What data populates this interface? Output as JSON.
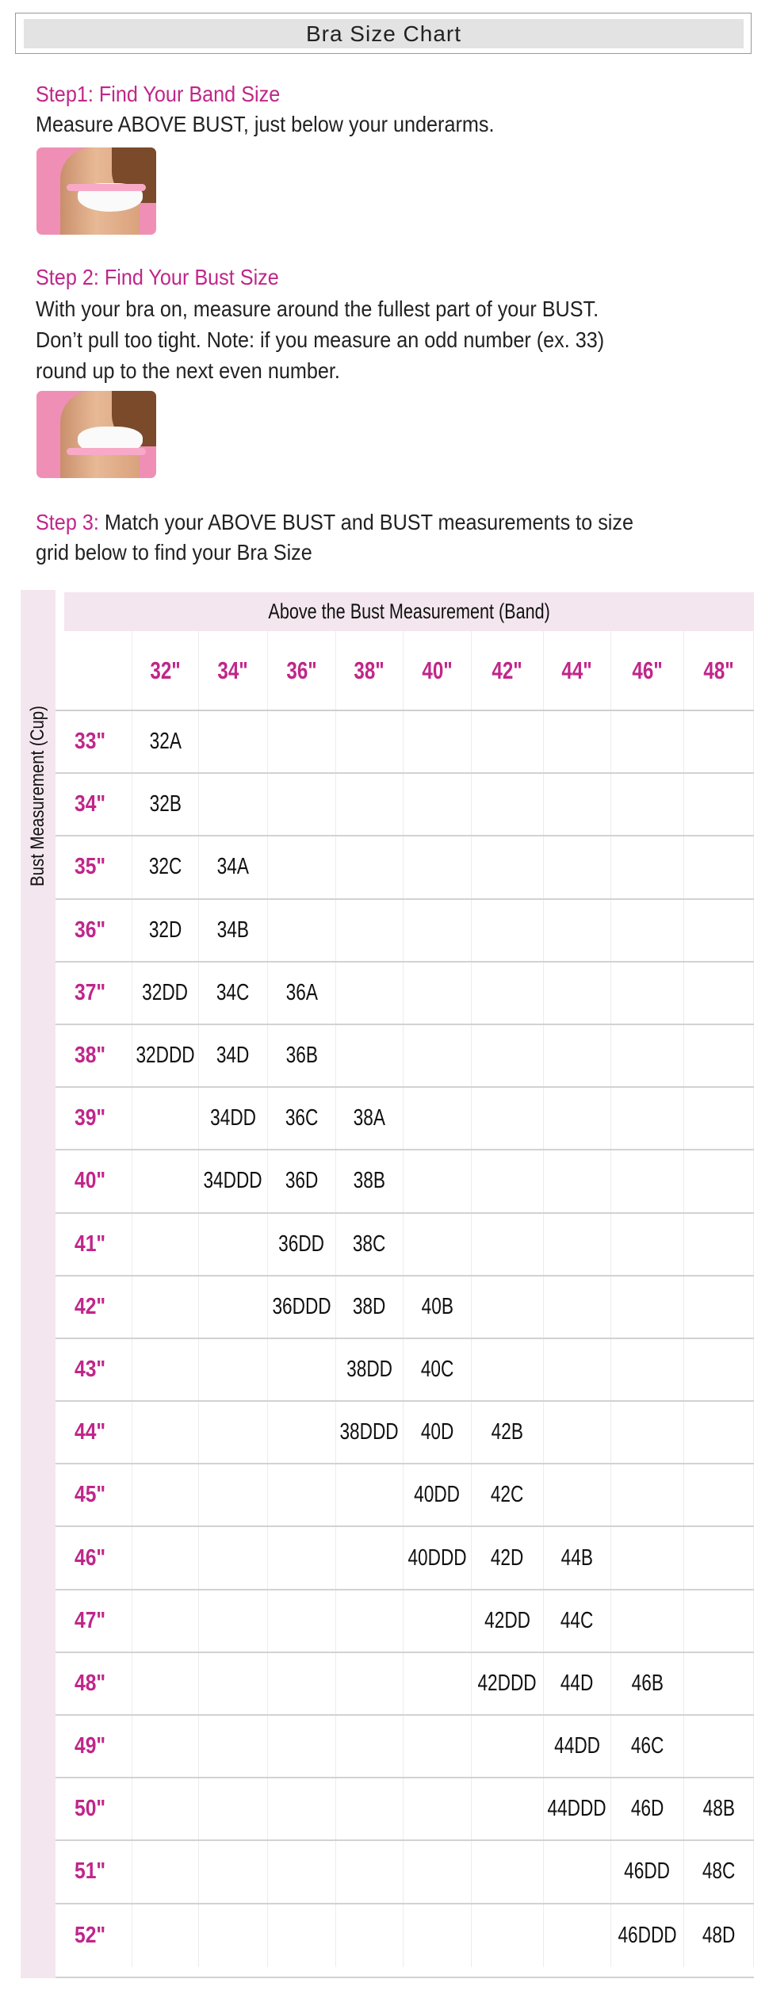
{
  "header": {
    "title": "Bra Size Chart"
  },
  "step1": {
    "title": "Step1: Find Your Band Size",
    "text": "Measure ABOVE BUST, just below your underarms.",
    "image": "band-measurement-photo"
  },
  "step2": {
    "title": "Step 2: Find Your Bust Size",
    "lines": [
      "With your bra on, measure around the fullest part of your BUST.",
      "Don’t pull too tight. Note: if you measure an odd number (ex. 33)",
      "round up to the next even number."
    ],
    "image": "bust-measurement-photo"
  },
  "step3": {
    "title": "Step 3:",
    "text_line1": " Match your ABOVE BUST and BUST measurements to size",
    "text_line2": "grid below to find your Bra Size"
  },
  "colors": {
    "accent": "#c0268a",
    "band_bg": "#f3e6ee",
    "header_bg": "#e3e3e3"
  },
  "table": {
    "column_axis_label": "Above the Bust Measurement (Band)",
    "row_axis_label": "Bust Measurement (Cup)",
    "columns": [
      "32\"",
      "34\"",
      "36\"",
      "38\"",
      "40\"",
      "42\"",
      "44\"",
      "46\"",
      "48\""
    ],
    "rows": [
      {
        "label": "33\"",
        "cells": [
          "32A",
          "",
          "",
          "",
          "",
          "",
          "",
          "",
          ""
        ]
      },
      {
        "label": "34\"",
        "cells": [
          "32B",
          "",
          "",
          "",
          "",
          "",
          "",
          "",
          ""
        ]
      },
      {
        "label": "35\"",
        "cells": [
          "32C",
          "34A",
          "",
          "",
          "",
          "",
          "",
          "",
          ""
        ]
      },
      {
        "label": "36\"",
        "cells": [
          "32D",
          "34B",
          "",
          "",
          "",
          "",
          "",
          "",
          ""
        ]
      },
      {
        "label": "37\"",
        "cells": [
          "32DD",
          "34C",
          "36A",
          "",
          "",
          "",
          "",
          "",
          ""
        ]
      },
      {
        "label": "38\"",
        "cells": [
          "32DDD",
          "34D",
          "36B",
          "",
          "",
          "",
          "",
          "",
          ""
        ]
      },
      {
        "label": "39\"",
        "cells": [
          "",
          "34DD",
          "36C",
          "38A",
          "",
          "",
          "",
          "",
          ""
        ]
      },
      {
        "label": "40\"",
        "cells": [
          "",
          "34DDD",
          "36D",
          "38B",
          "",
          "",
          "",
          "",
          ""
        ]
      },
      {
        "label": "41\"",
        "cells": [
          "",
          "",
          "36DD",
          "38C",
          "",
          "",
          "",
          "",
          ""
        ]
      },
      {
        "label": "42\"",
        "cells": [
          "",
          "",
          "36DDD",
          "38D",
          "40B",
          "",
          "",
          "",
          ""
        ]
      },
      {
        "label": "43\"",
        "cells": [
          "",
          "",
          "",
          "38DD",
          "40C",
          "",
          "",
          "",
          ""
        ]
      },
      {
        "label": "44\"",
        "cells": [
          "",
          "",
          "",
          "38DDD",
          "40D",
          "42B",
          "",
          "",
          ""
        ]
      },
      {
        "label": "45\"",
        "cells": [
          "",
          "",
          "",
          "",
          "40DD",
          "42C",
          "",
          "",
          ""
        ]
      },
      {
        "label": "46\"",
        "cells": [
          "",
          "",
          "",
          "",
          "40DDD",
          "42D",
          "44B",
          "",
          ""
        ]
      },
      {
        "label": "47\"",
        "cells": [
          "",
          "",
          "",
          "",
          "",
          "42DD",
          "44C",
          "",
          ""
        ]
      },
      {
        "label": "48\"",
        "cells": [
          "",
          "",
          "",
          "",
          "",
          "42DDD",
          "44D",
          "46B",
          ""
        ]
      },
      {
        "label": "49\"",
        "cells": [
          "",
          "",
          "",
          "",
          "",
          "",
          "44DD",
          "46C",
          ""
        ]
      },
      {
        "label": "50\"",
        "cells": [
          "",
          "",
          "",
          "",
          "",
          "",
          "44DDD",
          "46D",
          "48B"
        ]
      },
      {
        "label": "51\"",
        "cells": [
          "",
          "",
          "",
          "",
          "",
          "",
          "",
          "46DD",
          "48C"
        ]
      },
      {
        "label": "52\"",
        "cells": [
          "",
          "",
          "",
          "",
          "",
          "",
          "",
          "46DDD",
          "48D"
        ]
      }
    ]
  }
}
